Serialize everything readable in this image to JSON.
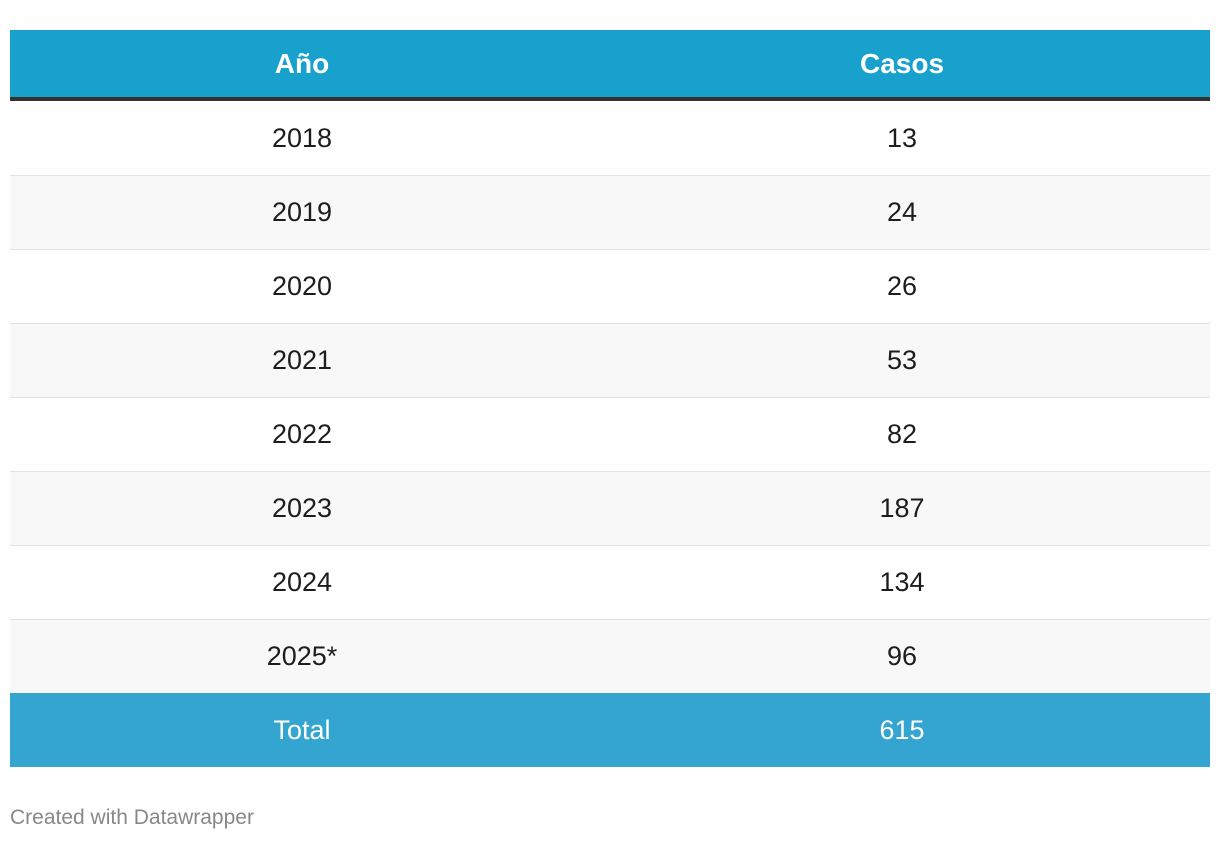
{
  "chart_data": {
    "type": "table",
    "columns": [
      "Año",
      "Casos"
    ],
    "rows": [
      {
        "year": "2018",
        "cases": "13"
      },
      {
        "year": "2019",
        "cases": "24"
      },
      {
        "year": "2020",
        "cases": "26"
      },
      {
        "year": "2021",
        "cases": "53"
      },
      {
        "year": "2022",
        "cases": "82"
      },
      {
        "year": "2023",
        "cases": "187"
      },
      {
        "year": "2024",
        "cases": "134"
      },
      {
        "year": "2025*",
        "cases": "96"
      }
    ],
    "total": {
      "label": "Total",
      "value": "615"
    },
    "colors": {
      "header": "#18a1cd",
      "total": "#34a4d0",
      "stripe": "#f8f8f8"
    }
  },
  "footer": {
    "credit": "Created with Datawrapper"
  }
}
